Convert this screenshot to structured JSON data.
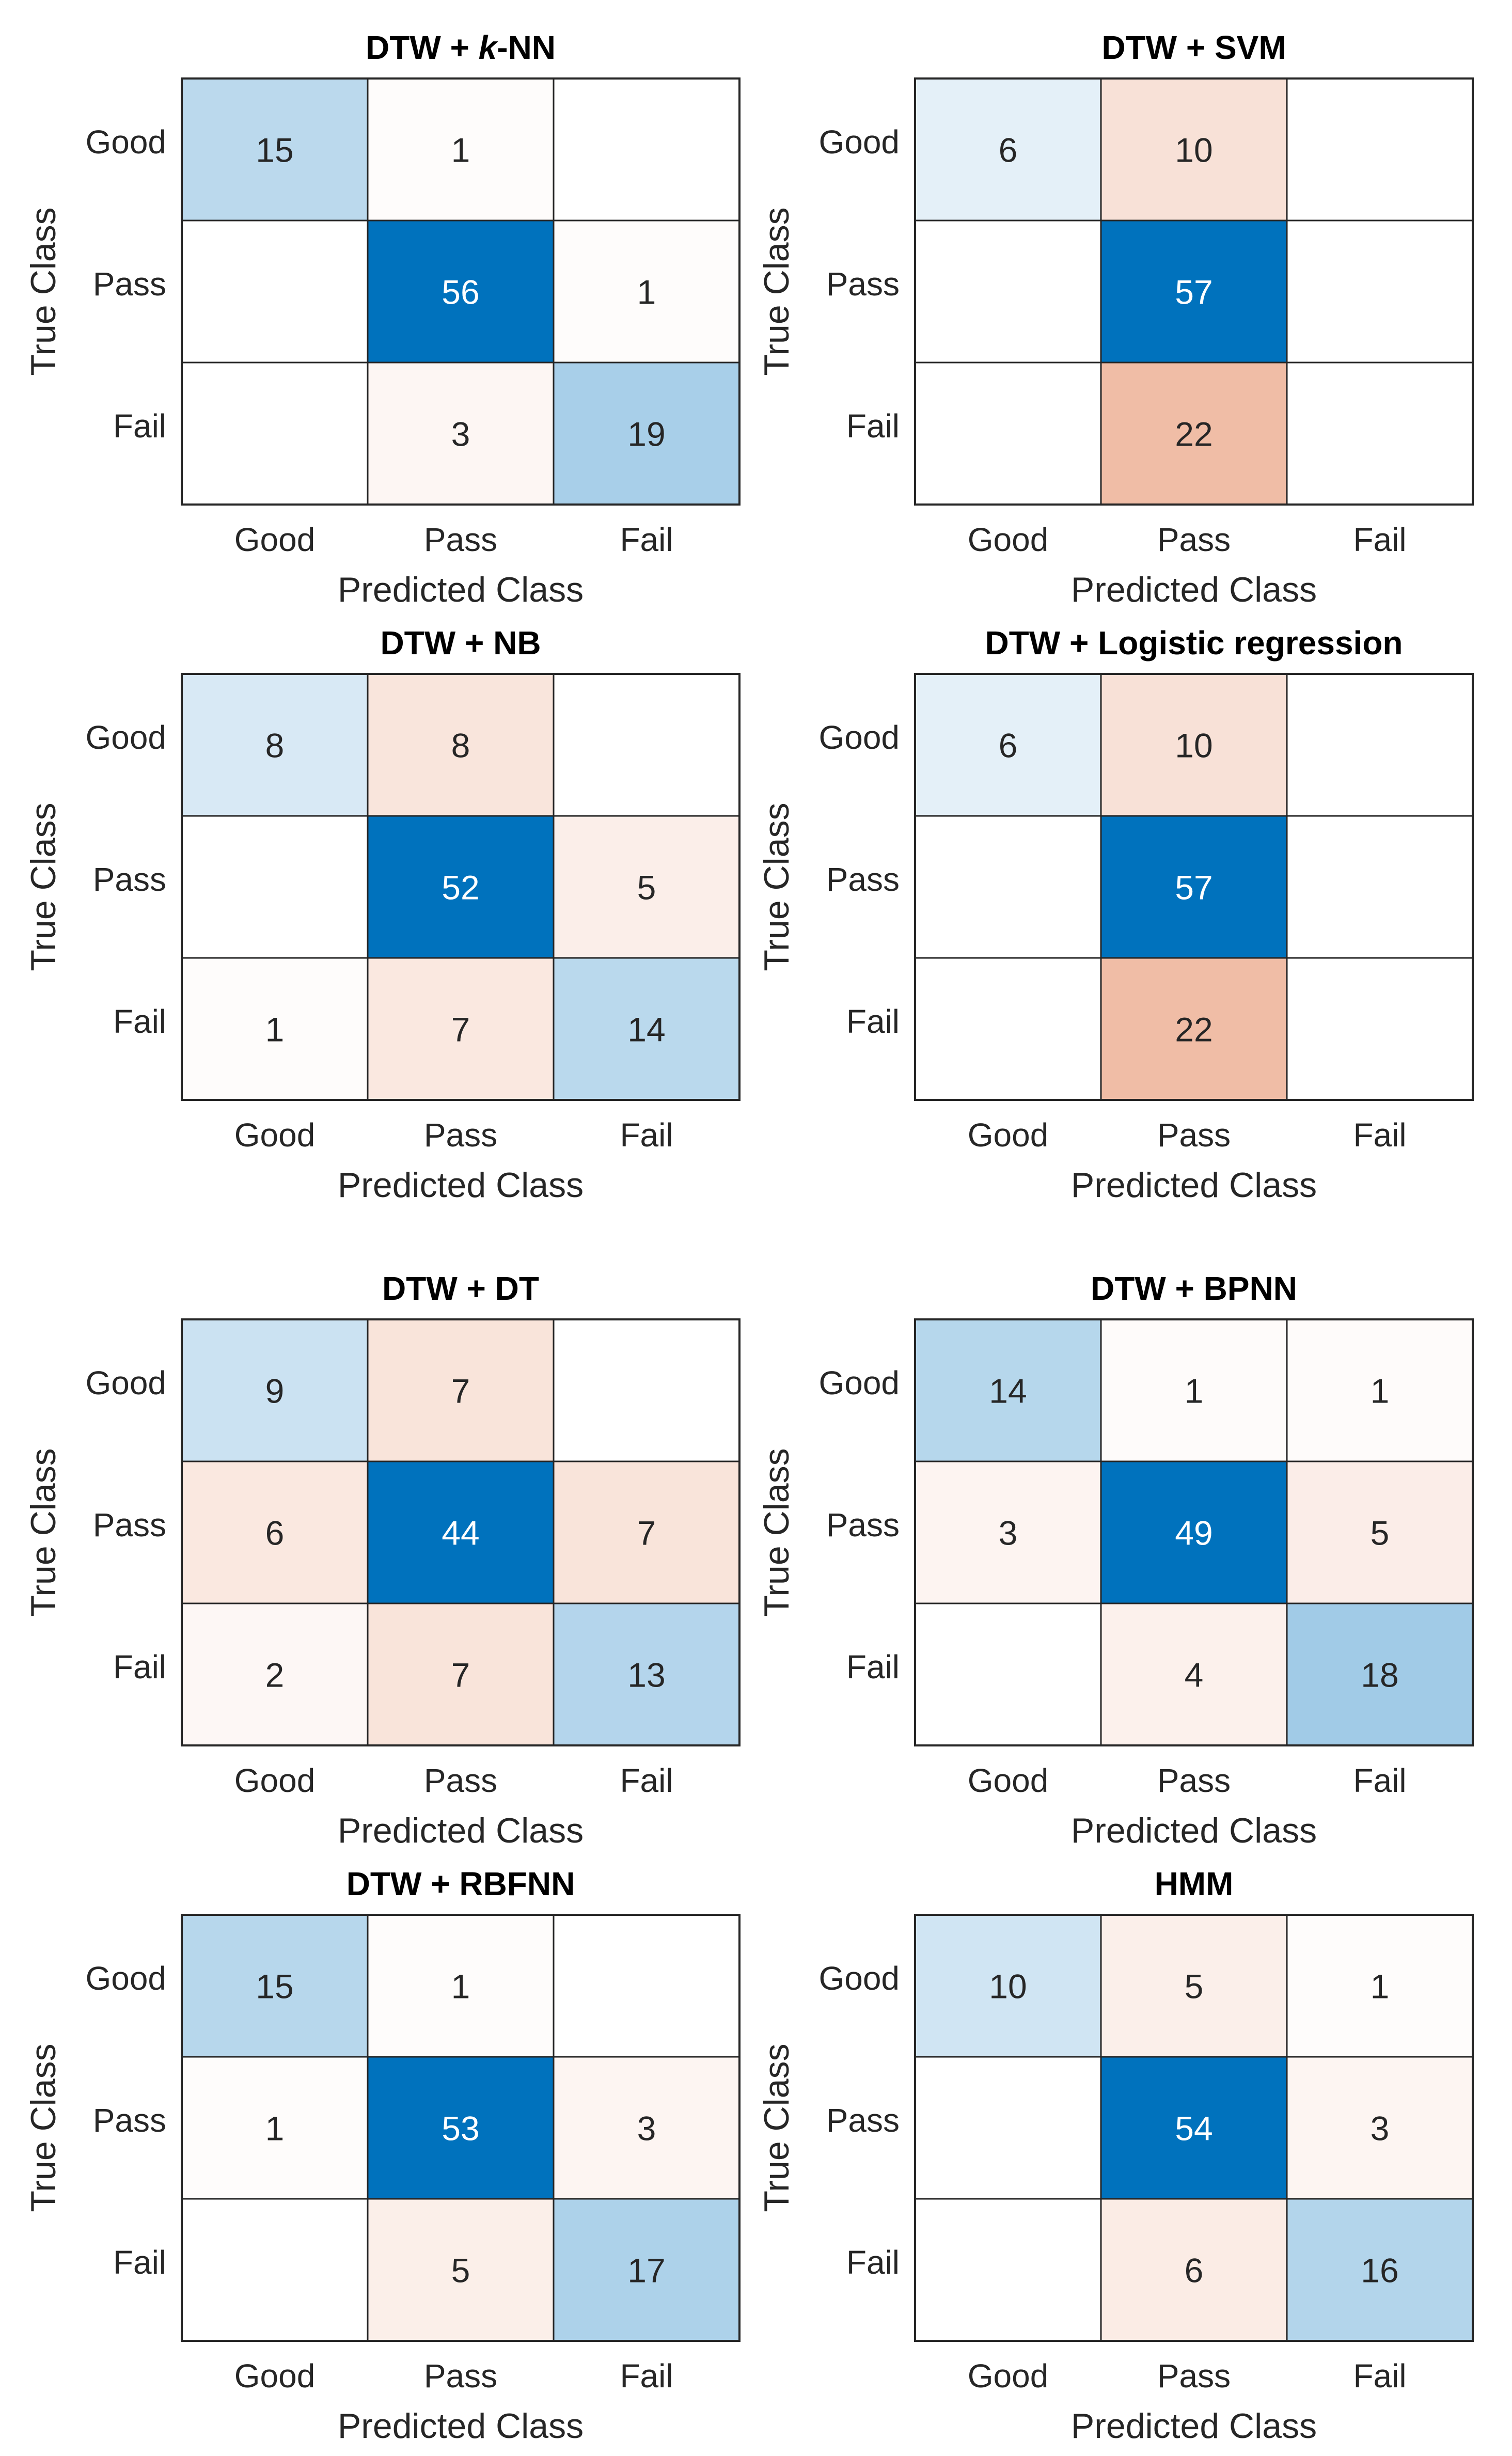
{
  "chart_data": [
    {
      "type": "heatmap",
      "title_prefix": "DTW + ",
      "title_italic": "k",
      "title_suffix": "-NN",
      "xlabel": "Predicted Class",
      "ylabel": "True Class",
      "row_labels": [
        "Good",
        "Pass",
        "Fail"
      ],
      "col_labels": [
        "Good",
        "Pass",
        "Fail"
      ],
      "values": [
        [
          15,
          1,
          null
        ],
        [
          null,
          56,
          1
        ],
        [
          null,
          3,
          19
        ]
      ]
    },
    {
      "type": "heatmap",
      "title": "DTW + SVM",
      "xlabel": "Predicted Class",
      "ylabel": "True Class",
      "row_labels": [
        "Good",
        "Pass",
        "Fail"
      ],
      "col_labels": [
        "Good",
        "Pass",
        "Fail"
      ],
      "values": [
        [
          6,
          10,
          null
        ],
        [
          null,
          57,
          null
        ],
        [
          null,
          22,
          null
        ]
      ]
    },
    {
      "type": "heatmap",
      "title": "DTW + NB",
      "xlabel": "Predicted Class",
      "ylabel": "True Class",
      "row_labels": [
        "Good",
        "Pass",
        "Fail"
      ],
      "col_labels": [
        "Good",
        "Pass",
        "Fail"
      ],
      "values": [
        [
          8,
          8,
          null
        ],
        [
          null,
          52,
          5
        ],
        [
          1,
          7,
          14
        ]
      ]
    },
    {
      "type": "heatmap",
      "title": "DTW + Logistic regression",
      "xlabel": "Predicted Class",
      "ylabel": "True Class",
      "row_labels": [
        "Good",
        "Pass",
        "Fail"
      ],
      "col_labels": [
        "Good",
        "Pass",
        "Fail"
      ],
      "values": [
        [
          6,
          10,
          null
        ],
        [
          null,
          57,
          null
        ],
        [
          null,
          22,
          null
        ]
      ]
    },
    {
      "type": "heatmap",
      "title": "DTW + DT",
      "xlabel": "Predicted Class",
      "ylabel": "True Class",
      "row_labels": [
        "Good",
        "Pass",
        "Fail"
      ],
      "col_labels": [
        "Good",
        "Pass",
        "Fail"
      ],
      "values": [
        [
          9,
          7,
          null
        ],
        [
          6,
          44,
          7
        ],
        [
          2,
          7,
          13
        ]
      ]
    },
    {
      "type": "heatmap",
      "title": "DTW + BPNN",
      "xlabel": "Predicted Class",
      "ylabel": "True Class",
      "row_labels": [
        "Good",
        "Pass",
        "Fail"
      ],
      "col_labels": [
        "Good",
        "Pass",
        "Fail"
      ],
      "values": [
        [
          14,
          1,
          1
        ],
        [
          3,
          49,
          5
        ],
        [
          null,
          4,
          18
        ]
      ]
    },
    {
      "type": "heatmap",
      "title": "DTW + RBFNN",
      "xlabel": "Predicted Class",
      "ylabel": "True Class",
      "row_labels": [
        "Good",
        "Pass",
        "Fail"
      ],
      "col_labels": [
        "Good",
        "Pass",
        "Fail"
      ],
      "values": [
        [
          15,
          1,
          null
        ],
        [
          1,
          53,
          3
        ],
        [
          null,
          5,
          17
        ]
      ]
    },
    {
      "type": "heatmap",
      "title": "HMM",
      "xlabel": "Predicted Class",
      "ylabel": "True Class",
      "row_labels": [
        "Good",
        "Pass",
        "Fail"
      ],
      "col_labels": [
        "Good",
        "Pass",
        "Fail"
      ],
      "values": [
        [
          10,
          5,
          1
        ],
        [
          null,
          54,
          3
        ],
        [
          null,
          6,
          16
        ]
      ]
    }
  ],
  "colors": {
    "diag_max": "#0072bd",
    "diag_min": "#ffffff",
    "off_max": "#d95319",
    "off_min": "#ffffff",
    "text_dark": "#262626",
    "text_light": "#ffffff",
    "grid": "#262626"
  }
}
